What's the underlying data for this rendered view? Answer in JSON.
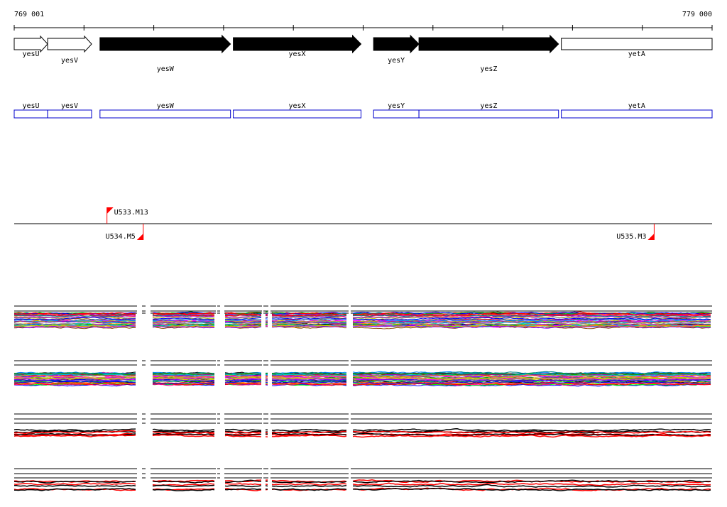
{
  "region": {
    "start_label": "769 001",
    "end_label": "779 000",
    "start": 769001,
    "end": 779000
  },
  "genes": [
    {
      "name": "yesU",
      "start": 769001,
      "end": 769480,
      "strand": "+",
      "filled": false,
      "label_row": 0
    },
    {
      "name": "yesV",
      "start": 769480,
      "end": 770110,
      "strand": "+",
      "filled": false,
      "label_row": 1
    },
    {
      "name": "yesW",
      "start": 770230,
      "end": 772100,
      "strand": "+",
      "filled": true,
      "label_row": 2
    },
    {
      "name": "yesX",
      "start": 772140,
      "end": 773970,
      "strand": "+",
      "filled": true,
      "label_row": 0
    },
    {
      "name": "yesY",
      "start": 774150,
      "end": 774800,
      "strand": "+",
      "filled": true,
      "label_row": 1
    },
    {
      "name": "yesZ",
      "start": 774800,
      "end": 776800,
      "strand": "+",
      "filled": true,
      "label_row": 2
    },
    {
      "name": "yetA",
      "start": 776840,
      "end": 779000,
      "strand": "+",
      "filled": false,
      "label_row": 0
    }
  ],
  "gene_boxes": [
    {
      "name": "yesU"
    },
    {
      "name": "yesV"
    },
    {
      "name": "yesW"
    },
    {
      "name": "yesX"
    },
    {
      "name": "yesY"
    },
    {
      "name": "yesZ"
    },
    {
      "name": "yetA"
    }
  ],
  "markers": [
    {
      "name": "U533.M13",
      "pos": 770330,
      "side": "top"
    },
    {
      "name": "U534.M5",
      "pos": 770850,
      "side": "bottom"
    },
    {
      "name": "U535.M3",
      "pos": 778170,
      "side": "bottom"
    }
  ],
  "tracks": [
    {
      "palette": "multicolor",
      "lines": 40
    },
    {
      "palette": "multicolor",
      "lines": 40
    },
    {
      "palette": "red-black",
      "lines": 6
    },
    {
      "palette": "red-black",
      "lines": 6
    }
  ],
  "colors": {
    "axis": "#000000",
    "gene_box": "#0000cc",
    "marker": "#ff0000",
    "series_red": "#ff0000",
    "series_black": "#000000"
  }
}
